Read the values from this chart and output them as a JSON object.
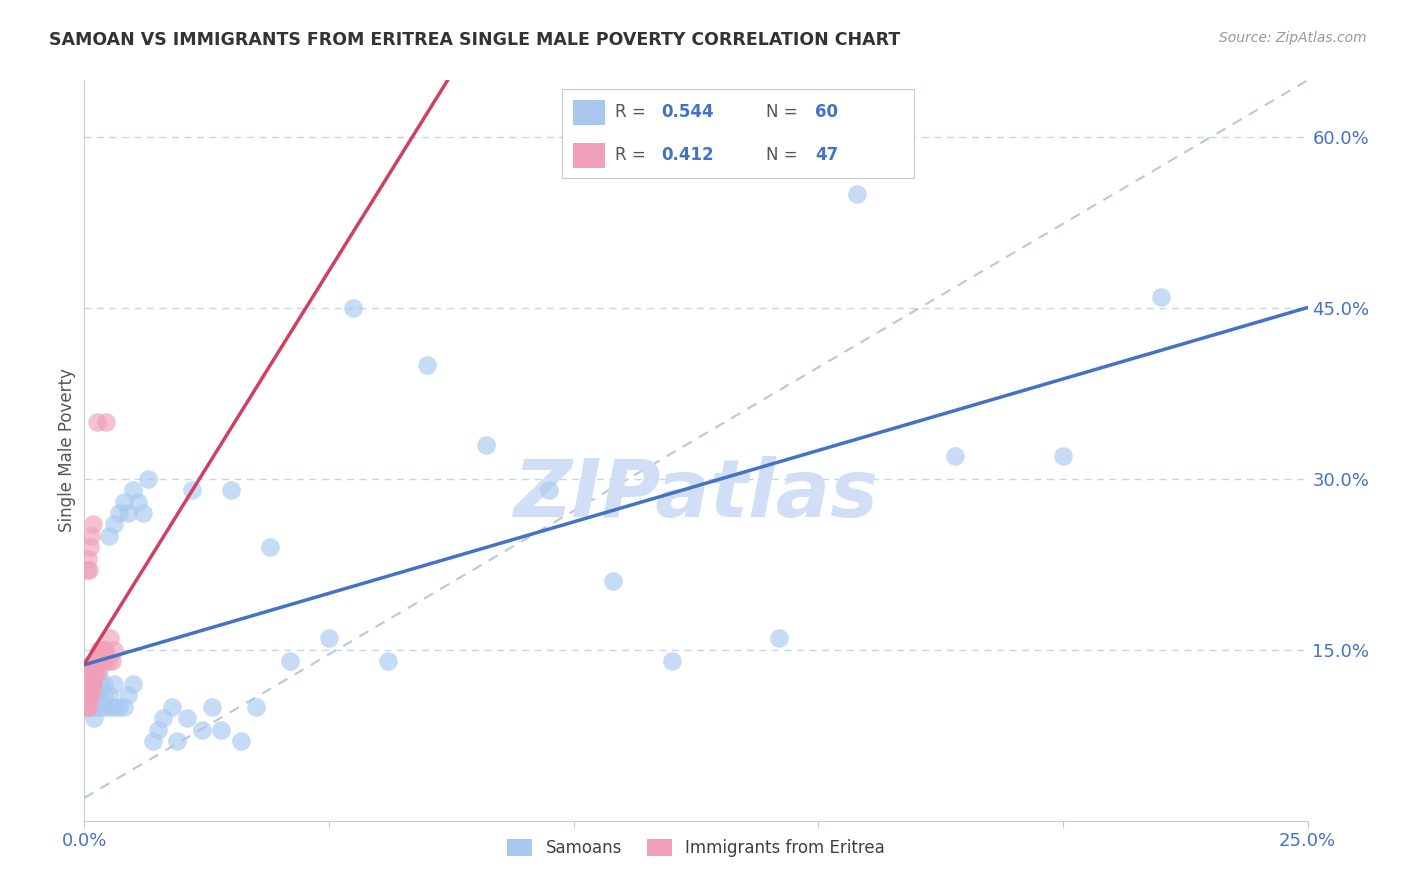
{
  "title": "SAMOAN VS IMMIGRANTS FROM ERITREA SINGLE MALE POVERTY CORRELATION CHART",
  "source": "Source: ZipAtlas.com",
  "ylabel": "Single Male Poverty",
  "xlim": [
    0.0,
    0.25
  ],
  "ylim": [
    0.0,
    0.65
  ],
  "yticks": [
    0.15,
    0.3,
    0.45,
    0.6
  ],
  "ytick_labels": [
    "15.0%",
    "30.0%",
    "45.0%",
    "60.0%"
  ],
  "xticks": [
    0.0,
    0.05,
    0.1,
    0.15,
    0.2,
    0.25
  ],
  "xtick_labels": [
    "0.0%",
    "",
    "",
    "",
    "",
    "25.0%"
  ],
  "color_blue": "#a8c8f0",
  "color_pink": "#f0a0b8",
  "line_blue": "#4472c4",
  "line_pink": "#d04060",
  "watermark": "ZIPatlas",
  "watermark_color": "#d0dff5",
  "title_color": "#333333",
  "axis_label_color": "#555555",
  "tick_color": "#4472c4",
  "gridline_color": "#c8d4e8",
  "samoans_x": [
    0.001,
    0.001,
    0.001,
    0.002,
    0.002,
    0.002,
    0.002,
    0.003,
    0.003,
    0.003,
    0.003,
    0.004,
    0.004,
    0.004,
    0.004,
    0.005,
    0.005,
    0.005,
    0.006,
    0.006,
    0.006,
    0.007,
    0.007,
    0.008,
    0.008,
    0.009,
    0.009,
    0.01,
    0.01,
    0.011,
    0.012,
    0.013,
    0.014,
    0.015,
    0.016,
    0.018,
    0.019,
    0.021,
    0.022,
    0.024,
    0.026,
    0.028,
    0.03,
    0.032,
    0.035,
    0.038,
    0.042,
    0.05,
    0.055,
    0.062,
    0.07,
    0.082,
    0.095,
    0.108,
    0.12,
    0.142,
    0.158,
    0.178,
    0.2,
    0.22
  ],
  "samoans_y": [
    0.1,
    0.11,
    0.12,
    0.09,
    0.1,
    0.11,
    0.13,
    0.1,
    0.11,
    0.12,
    0.13,
    0.1,
    0.11,
    0.12,
    0.14,
    0.1,
    0.11,
    0.25,
    0.1,
    0.12,
    0.26,
    0.1,
    0.27,
    0.1,
    0.28,
    0.11,
    0.27,
    0.12,
    0.29,
    0.28,
    0.27,
    0.3,
    0.07,
    0.08,
    0.09,
    0.1,
    0.07,
    0.09,
    0.29,
    0.08,
    0.1,
    0.08,
    0.29,
    0.07,
    0.1,
    0.24,
    0.14,
    0.16,
    0.45,
    0.14,
    0.4,
    0.33,
    0.29,
    0.21,
    0.14,
    0.16,
    0.55,
    0.32,
    0.32,
    0.46
  ],
  "eritrea_x": [
    0.0002,
    0.0003,
    0.0004,
    0.0005,
    0.0005,
    0.0006,
    0.0007,
    0.0007,
    0.0008,
    0.0009,
    0.0009,
    0.001,
    0.001,
    0.0011,
    0.0012,
    0.0012,
    0.0013,
    0.0014,
    0.0015,
    0.0015,
    0.0016,
    0.0017,
    0.0018,
    0.0018,
    0.0019,
    0.002,
    0.0021,
    0.0022,
    0.0023,
    0.0024,
    0.0025,
    0.0026,
    0.0027,
    0.0028,
    0.0029,
    0.003,
    0.0032,
    0.0034,
    0.0036,
    0.0038,
    0.004,
    0.0042,
    0.0045,
    0.0048,
    0.0052,
    0.0056,
    0.006
  ],
  "eritrea_y": [
    0.1,
    0.12,
    0.1,
    0.11,
    0.22,
    0.11,
    0.12,
    0.23,
    0.11,
    0.1,
    0.22,
    0.12,
    0.13,
    0.11,
    0.12,
    0.24,
    0.25,
    0.11,
    0.12,
    0.13,
    0.13,
    0.12,
    0.12,
    0.26,
    0.13,
    0.13,
    0.14,
    0.13,
    0.14,
    0.14,
    0.13,
    0.35,
    0.14,
    0.14,
    0.15,
    0.14,
    0.14,
    0.15,
    0.14,
    0.15,
    0.15,
    0.15,
    0.35,
    0.14,
    0.16,
    0.14,
    0.15
  ],
  "diag_line_x": [
    0.0,
    0.25
  ],
  "diag_line_y": [
    0.02,
    0.65
  ]
}
